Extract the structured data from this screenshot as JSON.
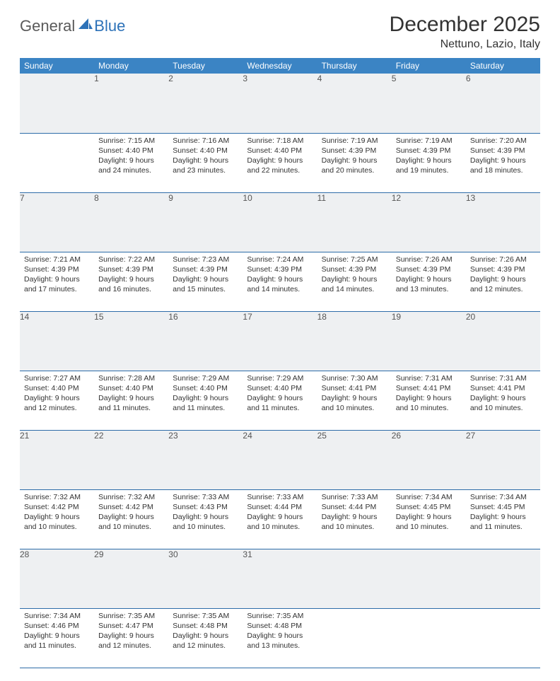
{
  "brand": {
    "part1": "General",
    "part2": "Blue"
  },
  "title": "December 2025",
  "location": "Nettuno, Lazio, Italy",
  "colors": {
    "header_bg": "#3b84c4",
    "header_text": "#ffffff",
    "daynum_bg": "#eef0f2",
    "rule": "#2d6ca8",
    "brand_gray": "#5a5a5a",
    "brand_blue": "#2d72b8"
  },
  "weekdays": [
    "Sunday",
    "Monday",
    "Tuesday",
    "Wednesday",
    "Thursday",
    "Friday",
    "Saturday"
  ],
  "weeks": [
    [
      null,
      {
        "n": "1",
        "sr": "7:15 AM",
        "ss": "4:40 PM",
        "dl": "9 hours and 24 minutes."
      },
      {
        "n": "2",
        "sr": "7:16 AM",
        "ss": "4:40 PM",
        "dl": "9 hours and 23 minutes."
      },
      {
        "n": "3",
        "sr": "7:18 AM",
        "ss": "4:40 PM",
        "dl": "9 hours and 22 minutes."
      },
      {
        "n": "4",
        "sr": "7:19 AM",
        "ss": "4:39 PM",
        "dl": "9 hours and 20 minutes."
      },
      {
        "n": "5",
        "sr": "7:19 AM",
        "ss": "4:39 PM",
        "dl": "9 hours and 19 minutes."
      },
      {
        "n": "6",
        "sr": "7:20 AM",
        "ss": "4:39 PM",
        "dl": "9 hours and 18 minutes."
      }
    ],
    [
      {
        "n": "7",
        "sr": "7:21 AM",
        "ss": "4:39 PM",
        "dl": "9 hours and 17 minutes."
      },
      {
        "n": "8",
        "sr": "7:22 AM",
        "ss": "4:39 PM",
        "dl": "9 hours and 16 minutes."
      },
      {
        "n": "9",
        "sr": "7:23 AM",
        "ss": "4:39 PM",
        "dl": "9 hours and 15 minutes."
      },
      {
        "n": "10",
        "sr": "7:24 AM",
        "ss": "4:39 PM",
        "dl": "9 hours and 14 minutes."
      },
      {
        "n": "11",
        "sr": "7:25 AM",
        "ss": "4:39 PM",
        "dl": "9 hours and 14 minutes."
      },
      {
        "n": "12",
        "sr": "7:26 AM",
        "ss": "4:39 PM",
        "dl": "9 hours and 13 minutes."
      },
      {
        "n": "13",
        "sr": "7:26 AM",
        "ss": "4:39 PM",
        "dl": "9 hours and 12 minutes."
      }
    ],
    [
      {
        "n": "14",
        "sr": "7:27 AM",
        "ss": "4:40 PM",
        "dl": "9 hours and 12 minutes."
      },
      {
        "n": "15",
        "sr": "7:28 AM",
        "ss": "4:40 PM",
        "dl": "9 hours and 11 minutes."
      },
      {
        "n": "16",
        "sr": "7:29 AM",
        "ss": "4:40 PM",
        "dl": "9 hours and 11 minutes."
      },
      {
        "n": "17",
        "sr": "7:29 AM",
        "ss": "4:40 PM",
        "dl": "9 hours and 11 minutes."
      },
      {
        "n": "18",
        "sr": "7:30 AM",
        "ss": "4:41 PM",
        "dl": "9 hours and 10 minutes."
      },
      {
        "n": "19",
        "sr": "7:31 AM",
        "ss": "4:41 PM",
        "dl": "9 hours and 10 minutes."
      },
      {
        "n": "20",
        "sr": "7:31 AM",
        "ss": "4:41 PM",
        "dl": "9 hours and 10 minutes."
      }
    ],
    [
      {
        "n": "21",
        "sr": "7:32 AM",
        "ss": "4:42 PM",
        "dl": "9 hours and 10 minutes."
      },
      {
        "n": "22",
        "sr": "7:32 AM",
        "ss": "4:42 PM",
        "dl": "9 hours and 10 minutes."
      },
      {
        "n": "23",
        "sr": "7:33 AM",
        "ss": "4:43 PM",
        "dl": "9 hours and 10 minutes."
      },
      {
        "n": "24",
        "sr": "7:33 AM",
        "ss": "4:44 PM",
        "dl": "9 hours and 10 minutes."
      },
      {
        "n": "25",
        "sr": "7:33 AM",
        "ss": "4:44 PM",
        "dl": "9 hours and 10 minutes."
      },
      {
        "n": "26",
        "sr": "7:34 AM",
        "ss": "4:45 PM",
        "dl": "9 hours and 10 minutes."
      },
      {
        "n": "27",
        "sr": "7:34 AM",
        "ss": "4:45 PM",
        "dl": "9 hours and 11 minutes."
      }
    ],
    [
      {
        "n": "28",
        "sr": "7:34 AM",
        "ss": "4:46 PM",
        "dl": "9 hours and 11 minutes."
      },
      {
        "n": "29",
        "sr": "7:35 AM",
        "ss": "4:47 PM",
        "dl": "9 hours and 12 minutes."
      },
      {
        "n": "30",
        "sr": "7:35 AM",
        "ss": "4:48 PM",
        "dl": "9 hours and 12 minutes."
      },
      {
        "n": "31",
        "sr": "7:35 AM",
        "ss": "4:48 PM",
        "dl": "9 hours and 13 minutes."
      },
      null,
      null,
      null
    ]
  ],
  "labels": {
    "sunrise": "Sunrise:",
    "sunset": "Sunset:",
    "daylight": "Daylight:"
  }
}
